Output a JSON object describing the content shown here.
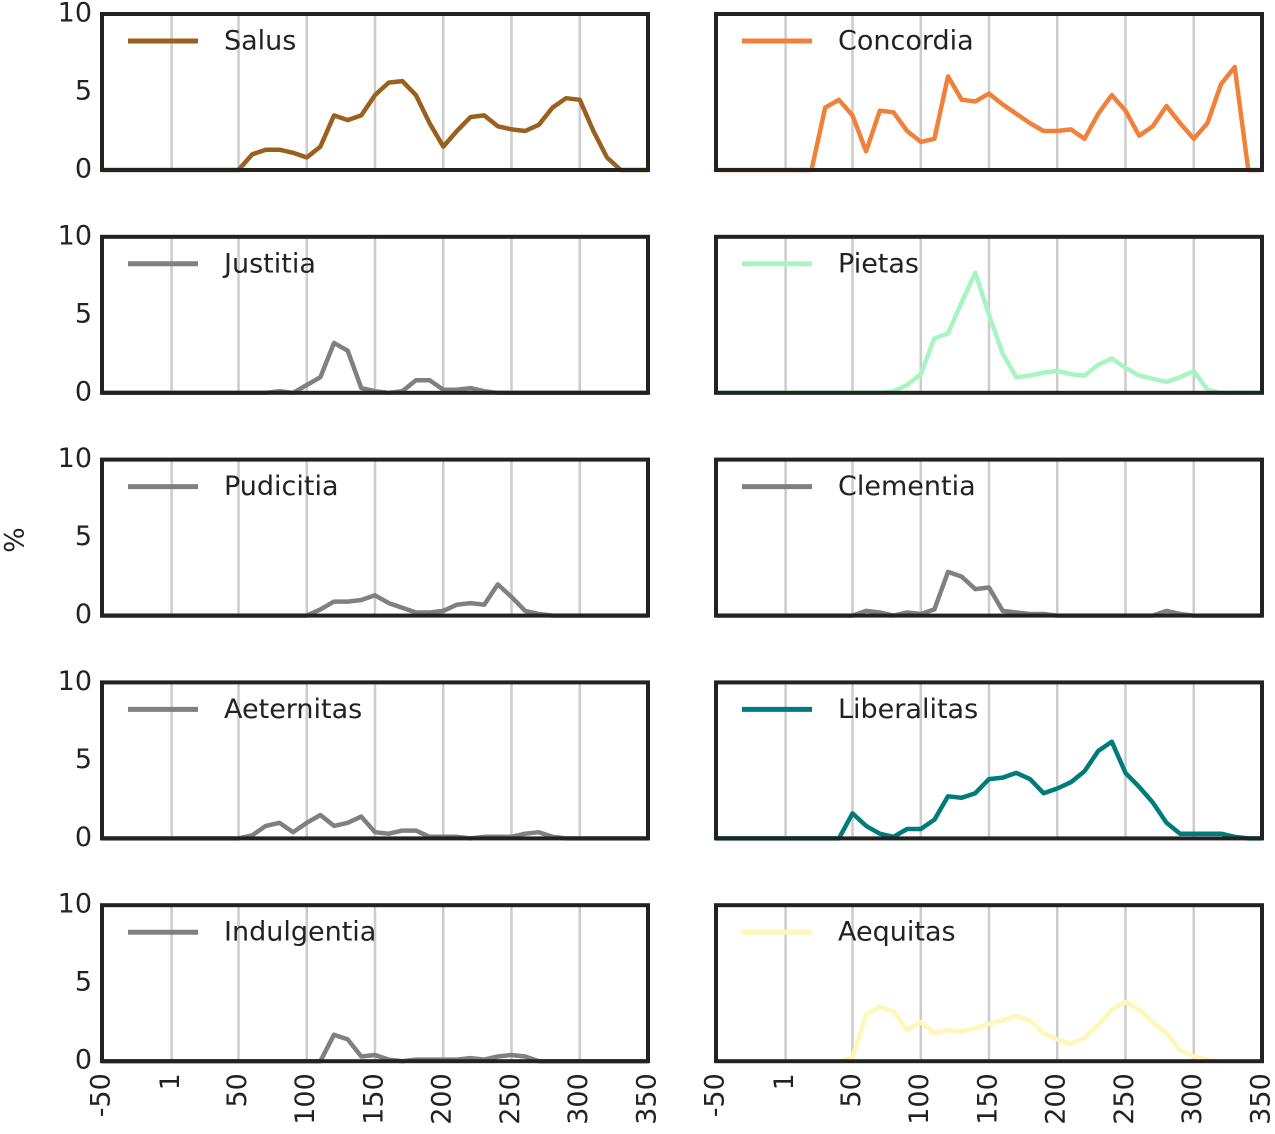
{
  "ylabel": "%",
  "x": [
    -50,
    -40,
    -30,
    -20,
    -10,
    0,
    10,
    20,
    30,
    40,
    50,
    60,
    70,
    80,
    90,
    100,
    110,
    120,
    130,
    140,
    150,
    160,
    170,
    180,
    190,
    200,
    210,
    220,
    230,
    240,
    250,
    260,
    270,
    280,
    290,
    300,
    310,
    320,
    330,
    340,
    350
  ],
  "xlim": [
    -50,
    350
  ],
  "xticks": [
    -50,
    1,
    50,
    100,
    150,
    200,
    250,
    300,
    350
  ],
  "ylim": [
    0,
    10
  ],
  "yticks": [
    0,
    5,
    10
  ],
  "grid": true,
  "chart_data": [
    {
      "type": "line",
      "series": [
        {
          "name": "Salus",
          "color": "#99601f",
          "values": [
            0,
            0,
            0,
            0,
            0,
            0,
            0,
            0,
            0,
            0,
            0,
            1.0,
            1.3,
            1.3,
            1.1,
            0.8,
            1.5,
            3.5,
            3.2,
            3.5,
            4.8,
            5.6,
            5.7,
            4.8,
            3.0,
            1.5,
            2.5,
            3.4,
            3.5,
            2.8,
            2.6,
            2.5,
            2.9,
            4.0,
            4.6,
            4.5,
            2.5,
            0.8,
            0,
            0,
            0
          ]
        }
      ]
    },
    {
      "type": "line",
      "series": [
        {
          "name": "Concordia",
          "color": "#f0813a",
          "values": [
            0,
            0,
            0,
            0,
            0,
            0,
            0,
            0,
            4.0,
            4.5,
            3.5,
            1.2,
            3.8,
            3.7,
            2.5,
            1.8,
            2.0,
            6.0,
            4.5,
            4.4,
            4.9,
            4.2,
            3.6,
            3.0,
            2.5,
            2.5,
            2.6,
            2.0,
            3.6,
            4.8,
            3.8,
            2.2,
            2.8,
            4.1,
            3.0,
            2.0,
            3.0,
            5.5,
            6.6,
            0,
            0
          ]
        }
      ]
    },
    {
      "type": "line",
      "series": [
        {
          "name": "Justitia",
          "color": "#808080",
          "values": [
            0,
            0,
            0,
            0,
            0,
            0,
            0,
            0,
            0,
            0,
            0,
            0,
            0,
            0.1,
            0,
            0.5,
            1.0,
            3.2,
            2.7,
            0.3,
            0.1,
            0,
            0.1,
            0.8,
            0.8,
            0.2,
            0.2,
            0.3,
            0.1,
            0,
            0,
            0,
            0,
            0,
            0,
            0,
            0,
            0,
            0,
            0,
            0
          ]
        }
      ]
    },
    {
      "type": "line",
      "series": [
        {
          "name": "Pietas",
          "color": "#a8f5c2",
          "values": [
            0,
            0,
            0,
            0,
            0,
            0,
            0,
            0,
            0,
            0,
            0,
            0,
            0,
            0.1,
            0.5,
            1.2,
            3.5,
            3.8,
            5.8,
            7.7,
            5.0,
            2.5,
            1.0,
            1.1,
            1.3,
            1.4,
            1.2,
            1.1,
            1.8,
            2.2,
            1.6,
            1.1,
            0.9,
            0.7,
            1.0,
            1.4,
            0.2,
            0,
            0,
            0,
            0
          ]
        }
      ]
    },
    {
      "type": "line",
      "series": [
        {
          "name": "Pudicitia",
          "color": "#808080",
          "values": [
            0,
            0,
            0,
            0,
            0,
            0,
            0,
            0,
            0,
            0,
            0,
            0,
            0,
            0,
            0,
            0,
            0.4,
            0.9,
            0.9,
            1.0,
            1.3,
            0.8,
            0.5,
            0.2,
            0.2,
            0.3,
            0.7,
            0.8,
            0.7,
            2.0,
            1.2,
            0.3,
            0.1,
            0,
            0,
            0,
            0,
            0,
            0,
            0,
            0
          ]
        }
      ]
    },
    {
      "type": "line",
      "series": [
        {
          "name": "Clementia",
          "color": "#808080",
          "values": [
            0,
            0,
            0,
            0,
            0,
            0,
            0,
            0,
            0,
            0,
            0,
            0.3,
            0.2,
            0,
            0.2,
            0.1,
            0.4,
            2.8,
            2.5,
            1.7,
            1.8,
            0.3,
            0.2,
            0.1,
            0.1,
            0,
            0,
            0,
            0,
            0,
            0,
            0,
            0,
            0.3,
            0.1,
            0,
            0,
            0,
            0,
            0,
            0
          ]
        }
      ]
    },
    {
      "type": "line",
      "series": [
        {
          "name": "Aeternitas",
          "color": "#808080",
          "values": [
            0,
            0,
            0,
            0,
            0,
            0,
            0,
            0,
            0,
            0,
            0,
            0.2,
            0.8,
            1.0,
            0.4,
            1.0,
            1.5,
            0.8,
            1.0,
            1.4,
            0.4,
            0.3,
            0.5,
            0.5,
            0.1,
            0.1,
            0.1,
            0,
            0.1,
            0.1,
            0.1,
            0.3,
            0.4,
            0.1,
            0,
            0,
            0,
            0,
            0,
            0,
            0
          ]
        }
      ]
    },
    {
      "type": "line",
      "series": [
        {
          "name": "Liberalitas",
          "color": "#007b7b",
          "values": [
            0,
            0,
            0,
            0,
            0,
            0,
            0,
            0,
            0,
            0,
            1.6,
            0.8,
            0.3,
            0.1,
            0.6,
            0.6,
            1.2,
            2.7,
            2.6,
            2.9,
            3.8,
            3.9,
            4.2,
            3.8,
            2.9,
            3.2,
            3.6,
            4.3,
            5.6,
            6.2,
            4.2,
            3.3,
            2.3,
            1.0,
            0.3,
            0.3,
            0.3,
            0.3,
            0.1,
            0,
            0
          ]
        }
      ]
    },
    {
      "type": "line",
      "series": [
        {
          "name": "Indulgentia",
          "color": "#808080",
          "values": [
            0,
            0,
            0,
            0,
            0,
            0,
            0,
            0,
            0,
            0,
            0,
            0,
            0,
            0,
            0,
            0,
            0,
            1.7,
            1.4,
            0.3,
            0.4,
            0.1,
            0,
            0.1,
            0.1,
            0.1,
            0.1,
            0.2,
            0.1,
            0.3,
            0.4,
            0.3,
            0,
            0,
            0,
            0,
            0,
            0,
            0,
            0,
            0
          ]
        }
      ]
    },
    {
      "type": "line",
      "series": [
        {
          "name": "Aequitas",
          "color": "#fff6ba",
          "values": [
            0,
            0,
            0,
            0,
            0,
            0,
            0,
            0,
            0,
            0,
            0.2,
            3.0,
            3.5,
            3.2,
            2.0,
            2.5,
            1.8,
            2.0,
            1.9,
            2.1,
            2.4,
            2.6,
            2.9,
            2.6,
            1.8,
            1.4,
            1.1,
            1.5,
            2.3,
            3.3,
            3.8,
            3.3,
            2.5,
            1.8,
            0.7,
            0.3,
            0.1,
            0,
            0,
            0,
            0
          ]
        }
      ]
    }
  ]
}
